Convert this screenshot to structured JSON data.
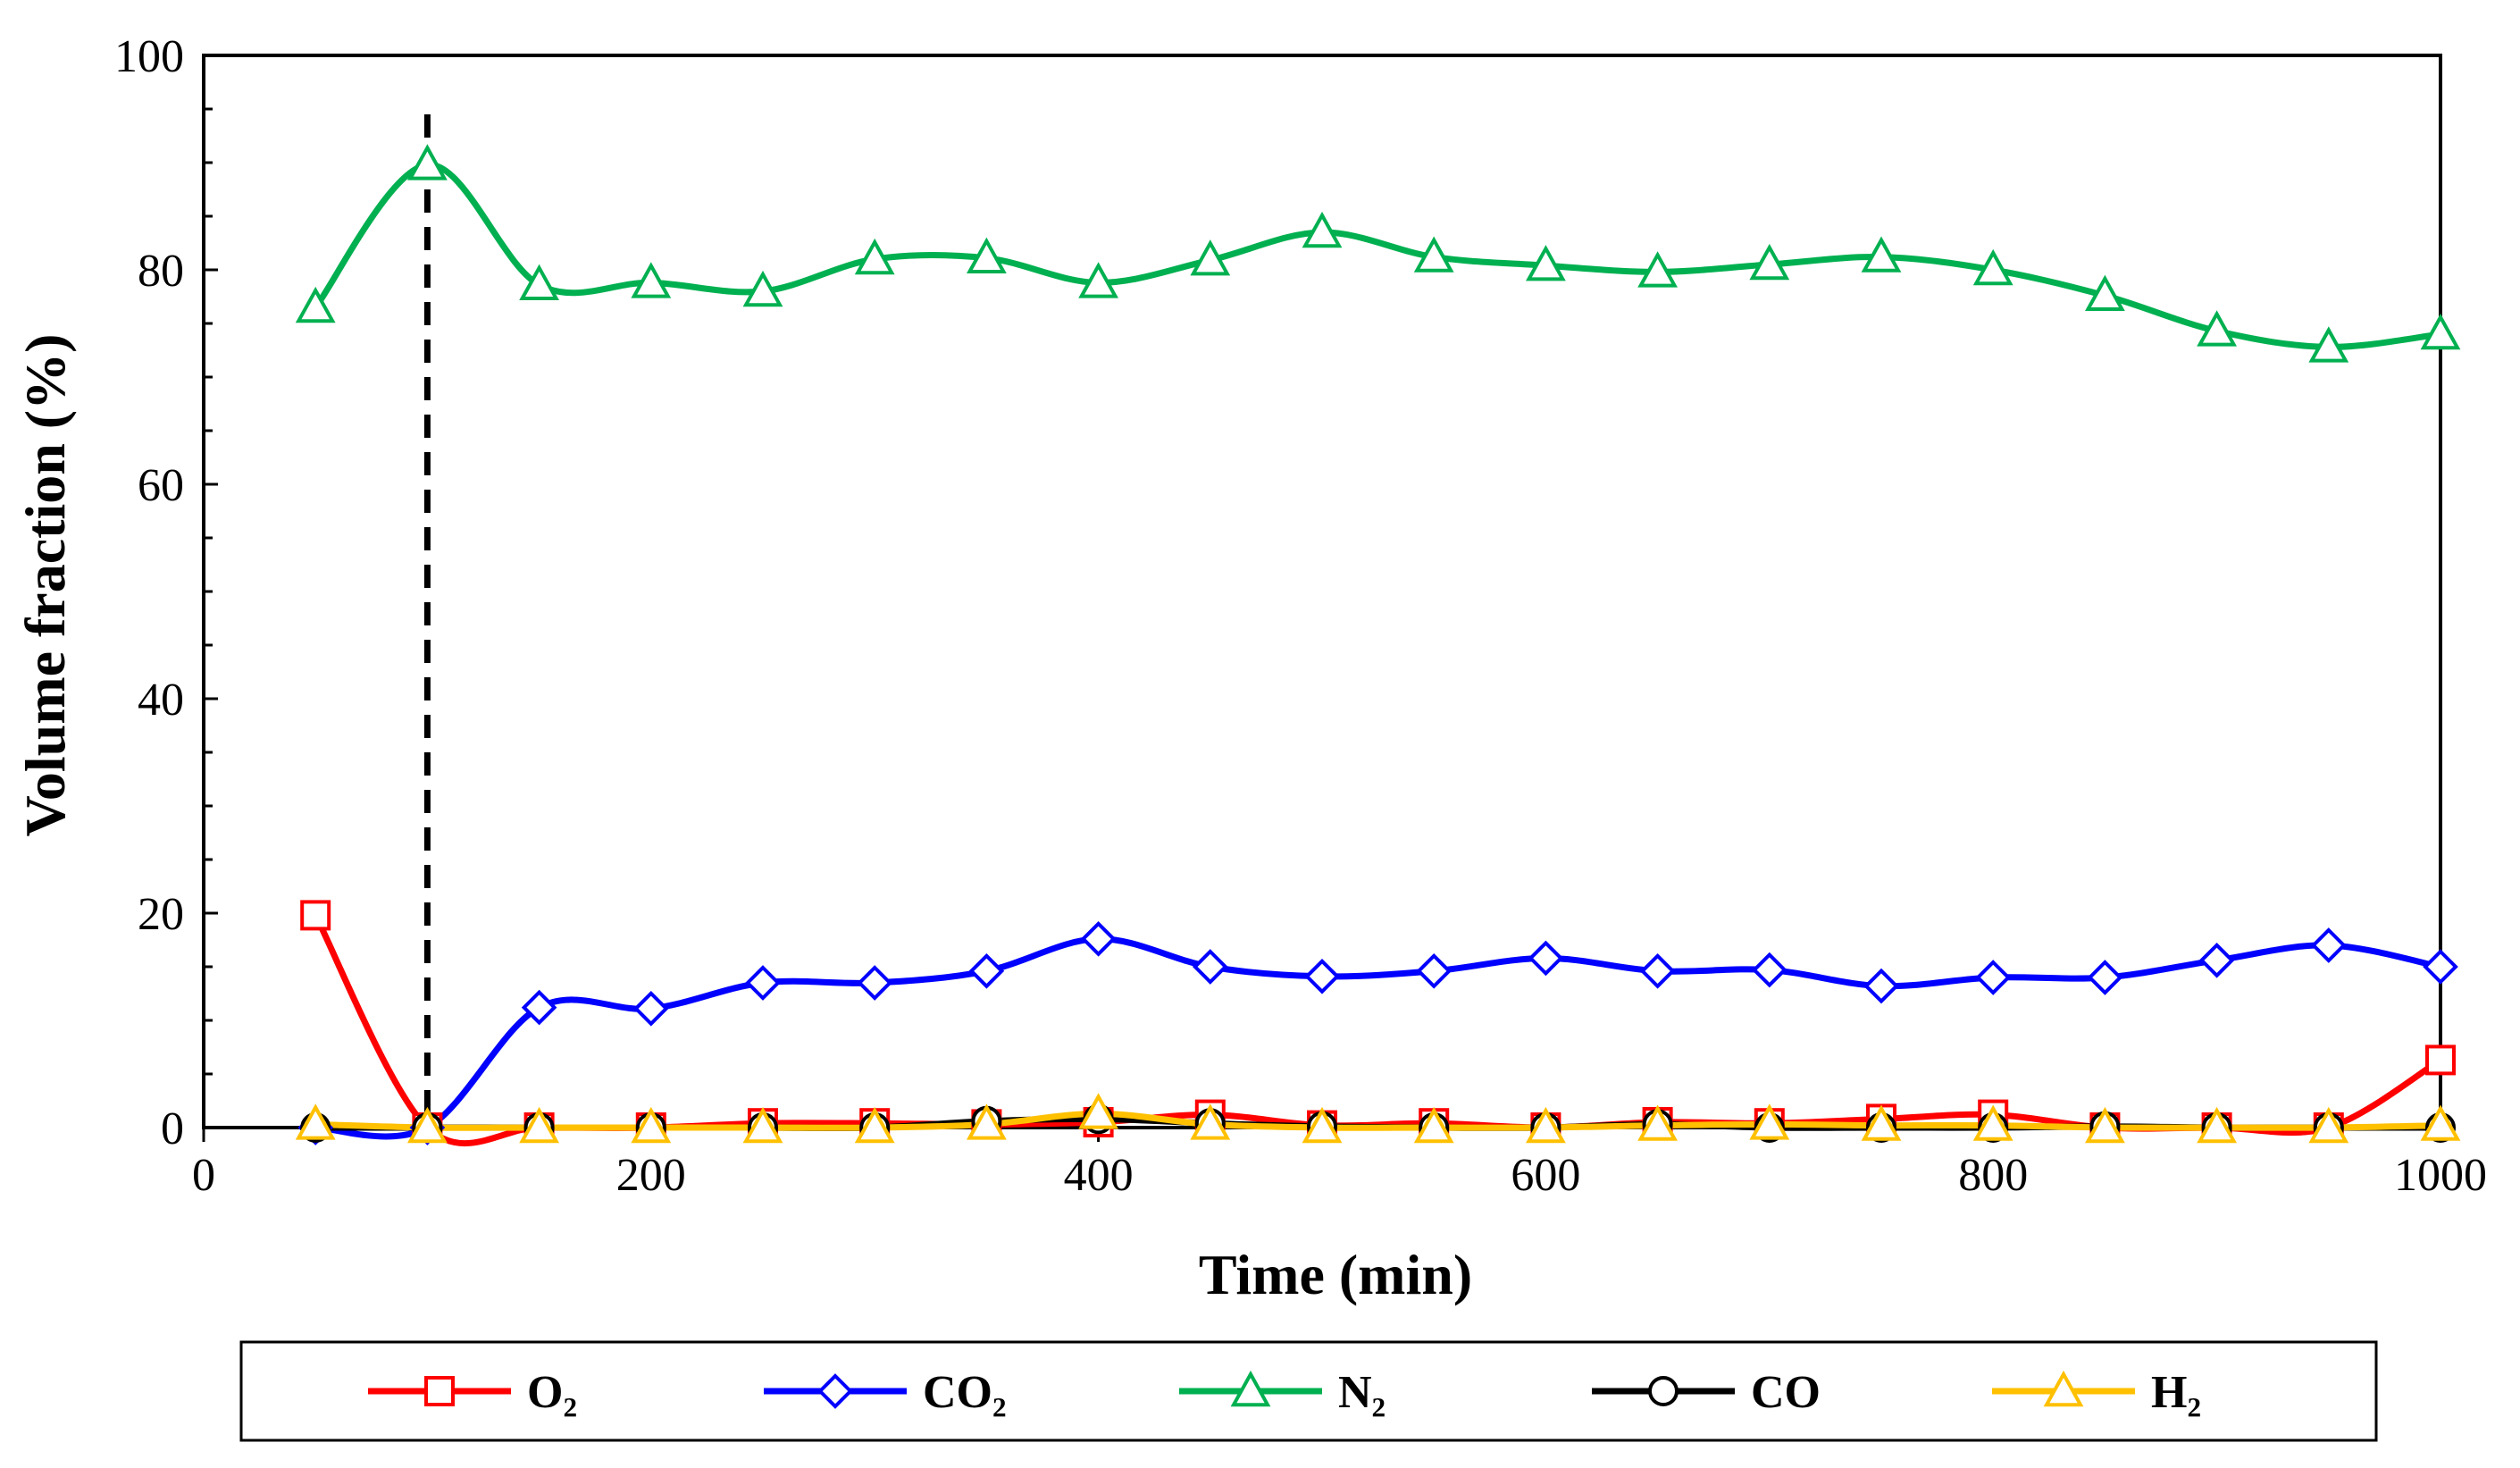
{
  "chart_data": {
    "type": "line",
    "title": "",
    "xlabel": "Time (min)",
    "ylabel": "Volume fraction (%)",
    "xlim": [
      0,
      1000
    ],
    "ylim": [
      0,
      100
    ],
    "x_ticks": [
      0,
      200,
      400,
      600,
      800,
      1000
    ],
    "y_ticks": [
      0,
      20,
      40,
      60,
      80,
      100
    ],
    "grid": false,
    "legend_position": "bottom",
    "reference_line": {
      "x": 100,
      "style": "dashed",
      "color": "#000000"
    },
    "x": [
      50,
      100,
      150,
      200,
      250,
      300,
      350,
      400,
      450,
      500,
      550,
      600,
      650,
      700,
      750,
      800,
      850,
      900,
      950,
      1000
    ],
    "series": [
      {
        "name": "O₂",
        "color": "#ff0000",
        "marker": "square",
        "values": [
          19.8,
          0,
          0,
          0,
          0.4,
          0.4,
          0.3,
          0.5,
          1.2,
          0.2,
          0.4,
          0,
          0.5,
          0.4,
          0.8,
          1.2,
          0,
          0,
          0,
          6.3
        ]
      },
      {
        "name": "CO₂",
        "color": "#0000ff",
        "marker": "diamond",
        "values": [
          0,
          0,
          11.2,
          11.1,
          13.5,
          13.5,
          14.6,
          17.6,
          15.0,
          14.1,
          14.6,
          15.8,
          14.6,
          14.7,
          13.2,
          14.0,
          14.0,
          15.6,
          17.0,
          15.0
        ]
      },
      {
        "name": "N₂",
        "color": "#00b050",
        "marker": "triangle",
        "values": [
          76.5,
          89.8,
          78.6,
          78.8,
          78.0,
          81.0,
          81.1,
          78.8,
          80.9,
          83.5,
          81.2,
          80.4,
          79.8,
          80.5,
          81.2,
          80.0,
          77.6,
          74.3,
          72.8,
          74.0
        ]
      },
      {
        "name": "CO",
        "color": "#000000",
        "marker": "circle",
        "values": [
          0,
          0,
          0,
          0,
          0,
          0,
          0.6,
          0.8,
          0.4,
          0.1,
          0,
          0,
          0.3,
          0,
          0,
          0,
          0.1,
          0,
          0,
          0
        ]
      },
      {
        "name": "H₂",
        "color": "#ffc000",
        "marker": "triangle",
        "values": [
          0.3,
          0,
          0,
          0,
          0,
          0,
          0.3,
          1.3,
          0.3,
          0,
          0,
          0,
          0.2,
          0.3,
          0.2,
          0.2,
          0,
          0,
          0,
          0.2
        ]
      }
    ]
  }
}
